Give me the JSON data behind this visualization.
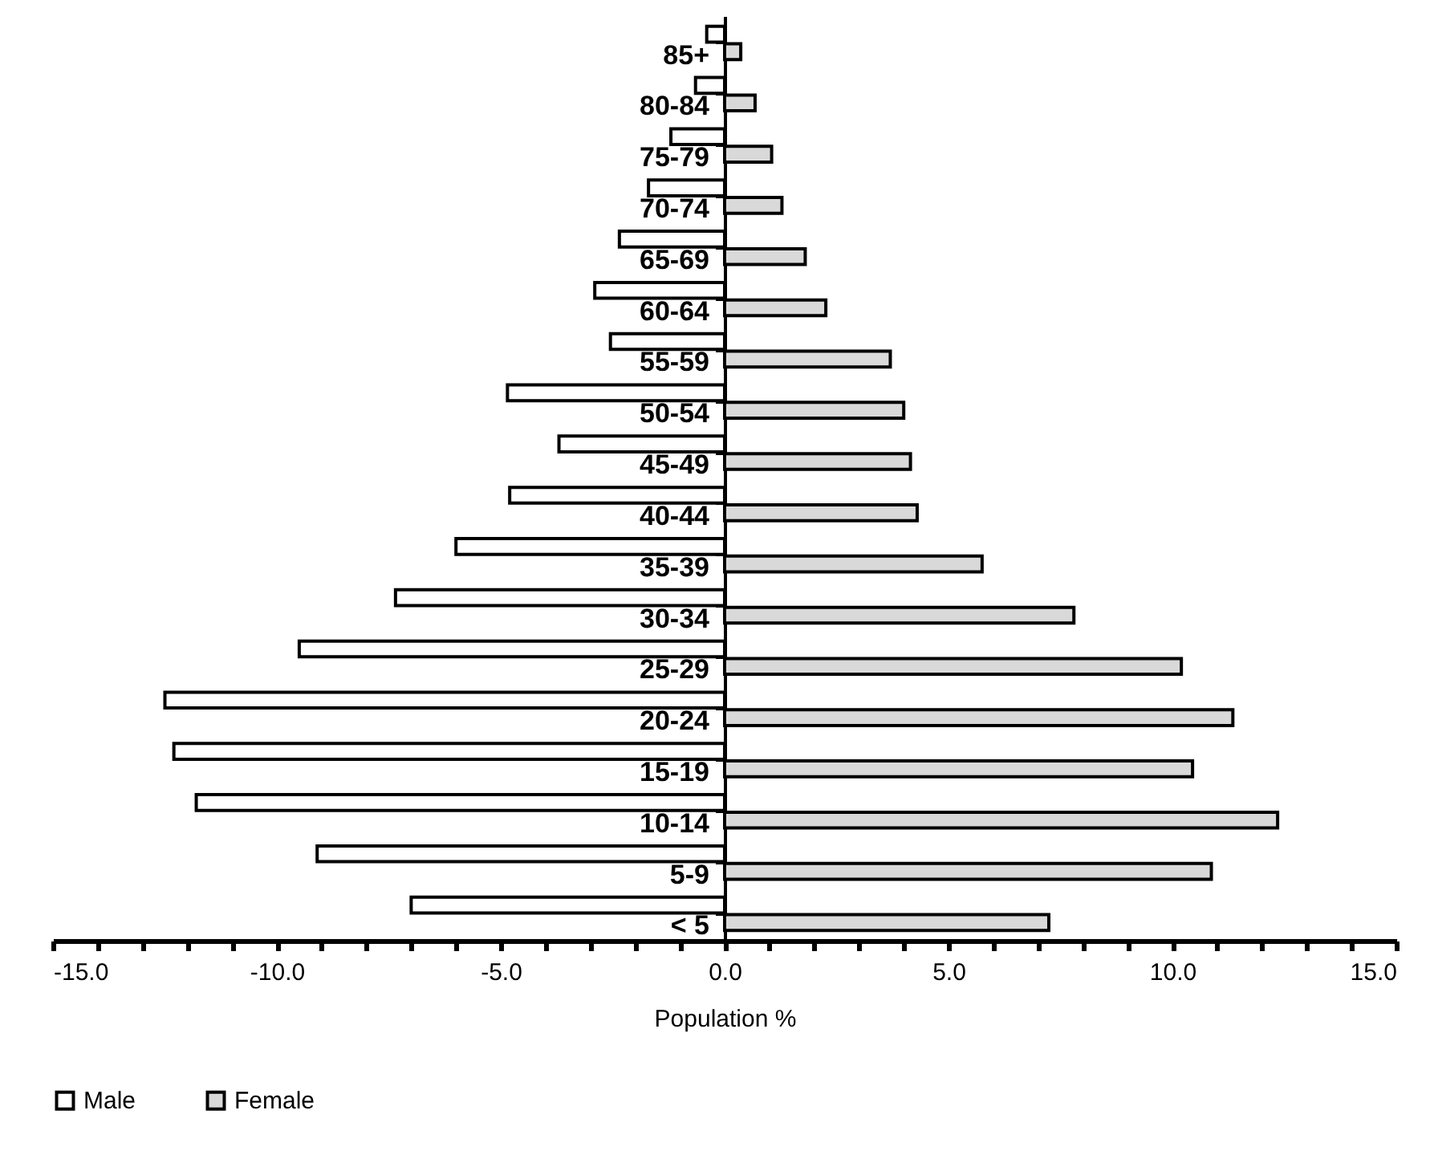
{
  "chart_data": {
    "type": "bar",
    "orientation": "horizontal",
    "xlabel": "Population %",
    "legend": "bottom",
    "categories": [
      "85+",
      "80-84",
      "75-79",
      "70-74",
      "65-69",
      "60-64",
      "55-59",
      "50-54",
      "45-49",
      "40-44",
      "35-39",
      "30-34",
      "25-29",
      "20-24",
      "15-19",
      "10-14",
      "5-9",
      "< 5"
    ],
    "series": [
      {
        "name": "Male",
        "color": "#ffffff",
        "values": [
          -0.4,
          -0.65,
          -1.2,
          -1.7,
          -2.35,
          -2.9,
          -2.55,
          -4.85,
          -3.7,
          -4.8,
          -6.0,
          -7.35,
          -9.5,
          -12.5,
          -12.3,
          -11.8,
          -9.1,
          -7.0
        ]
      },
      {
        "name": "Female",
        "color": "#d9d9d9",
        "values": [
          0.36,
          0.68,
          1.05,
          1.28,
          1.8,
          2.26,
          3.7,
          4.0,
          4.15,
          4.3,
          5.75,
          7.8,
          10.2,
          11.35,
          10.45,
          12.35,
          10.87,
          7.24
        ]
      }
    ],
    "xlim": [
      -15,
      15
    ],
    "xticks": [
      {
        "value": -15,
        "label": "-15.0"
      },
      {
        "value": -14,
        "label": null
      },
      {
        "value": -13,
        "label": null
      },
      {
        "value": -12,
        "label": null
      },
      {
        "value": -11,
        "label": null
      },
      {
        "value": -10,
        "label": "-10.0"
      },
      {
        "value": -9,
        "label": null
      },
      {
        "value": -8,
        "label": null
      },
      {
        "value": -7,
        "label": null
      },
      {
        "value": -6,
        "label": null
      },
      {
        "value": -5,
        "label": "-5.0"
      },
      {
        "value": -4,
        "label": null
      },
      {
        "value": -3,
        "label": null
      },
      {
        "value": -2,
        "label": null
      },
      {
        "value": -1,
        "label": null
      },
      {
        "value": 0,
        "label": "0.0"
      },
      {
        "value": 1,
        "label": null
      },
      {
        "value": 2,
        "label": null
      },
      {
        "value": 3,
        "label": null
      },
      {
        "value": 4,
        "label": null
      },
      {
        "value": 5,
        "label": "5.0"
      },
      {
        "value": 6,
        "label": null
      },
      {
        "value": 7,
        "label": null
      },
      {
        "value": 8,
        "label": null
      },
      {
        "value": 9,
        "label": null
      },
      {
        "value": 10,
        "label": "10.0"
      },
      {
        "value": 11,
        "label": null
      },
      {
        "value": 12,
        "label": null
      },
      {
        "value": 13,
        "label": null
      },
      {
        "value": 14,
        "label": null
      },
      {
        "value": 15,
        "label": "15.0"
      }
    ]
  }
}
